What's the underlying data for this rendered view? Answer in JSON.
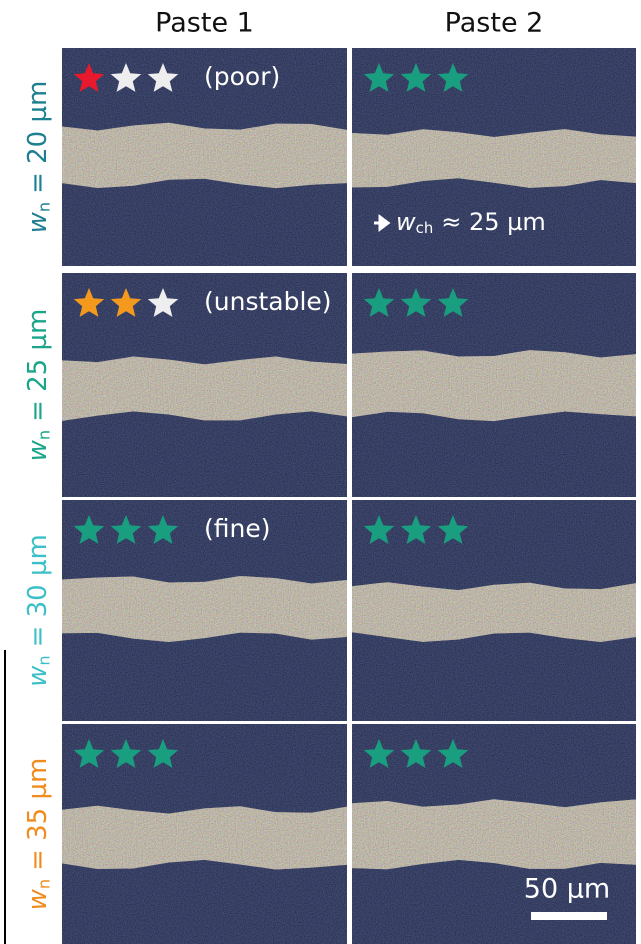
{
  "columns": [
    "Paste 1",
    "Paste 2"
  ],
  "rows": [
    {
      "symbol": "w",
      "subscript": "n",
      "value": "= 20 µm",
      "color": "#1d7f8f",
      "panels": [
        {
          "rating": 1,
          "star_color": "#e8192c",
          "note": "(poor)"
        },
        {
          "rating": 3,
          "star_color": "#1a9e80",
          "annotation": {
            "symbol": "w",
            "subscript": "ch",
            "text": "≈ 25 µm"
          }
        }
      ]
    },
    {
      "symbol": "w",
      "subscript": "n",
      "value": "= 25 µm",
      "color": "#1aa58a",
      "panels": [
        {
          "rating": 2,
          "star_color": "#f39a1e",
          "note": "(unstable)"
        },
        {
          "rating": 3,
          "star_color": "#1a9e80"
        }
      ]
    },
    {
      "symbol": "w",
      "subscript": "n",
      "value": "= 30 µm",
      "color": "#3cc0c8",
      "panels": [
        {
          "rating": 3,
          "star_color": "#1a9e80",
          "note": "(fine)"
        },
        {
          "rating": 3,
          "star_color": "#1a9e80"
        }
      ]
    },
    {
      "symbol": "w",
      "subscript": "n",
      "value": "= 35 µm",
      "color": "#f08c1e",
      "panels": [
        {
          "rating": 3,
          "star_color": "#1a9e80"
        },
        {
          "rating": 3,
          "star_color": "#1a9e80"
        }
      ]
    }
  ],
  "scale_bar": "50 µm"
}
